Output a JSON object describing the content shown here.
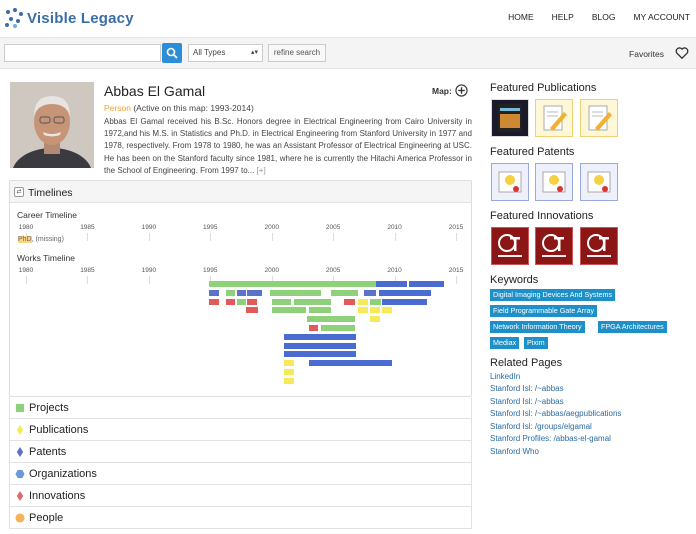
{
  "header": {
    "logo_text": "Visible Legacy",
    "nav": [
      "HOME",
      "HELP",
      "BLOG",
      "MY ACCOUNT"
    ]
  },
  "search": {
    "value": "",
    "type_selected": "All Types",
    "refine_label": "refine search",
    "favorites_label": "Favorites"
  },
  "person": {
    "name": "Abbas El Gamal",
    "type": "Person",
    "active": "(Active on this map: 1993-2014)",
    "map_label": "Map:",
    "bio": "Abbas El Gamal received his B.Sc. Honors degree in Electrical Engineering from Cairo University in 1972,and his M.S. in Statistics and Ph.D. in Electrical Engineering from Stanford University in 1977 and 1978, respectively. From 1978 to 1980, he was an Assistant Professor of Electrical Engineering at USC. He has been on the Stanford faculty since 1981, where he is currently the Hitachi America Professor in the School of Engineering. From 1997 to...",
    "bio_more": "[+]"
  },
  "timelines": {
    "title": "Timelines",
    "career_label": "Career Timeline",
    "works_label": "Works Timeline",
    "years": [
      "1980",
      "1985",
      "1990",
      "1995",
      "2000",
      "2005",
      "2010",
      "2015"
    ],
    "career_entry": "PhD, (missing)",
    "year_range": [
      1980,
      2015
    ],
    "works": [
      {
        "cat": "project",
        "start": 1994.9,
        "end": 2008.5,
        "row": 0
      },
      {
        "cat": "organization",
        "start": 2008.5,
        "end": 2011.0,
        "row": 0
      },
      {
        "cat": "organization",
        "start": 2011.2,
        "end": 2014.0,
        "row": 0
      },
      {
        "cat": "patent",
        "start": 1994.9,
        "end": 1995.7,
        "row": 1
      },
      {
        "cat": "project",
        "start": 1996.3,
        "end": 1997.0,
        "row": 1
      },
      {
        "cat": "patent",
        "start": 1997.2,
        "end": 1997.9,
        "row": 1
      },
      {
        "cat": "patent",
        "start": 1998.0,
        "end": 1999.2,
        "row": 1
      },
      {
        "cat": "project",
        "start": 1999.9,
        "end": 2004.0,
        "row": 1
      },
      {
        "cat": "project",
        "start": 2004.8,
        "end": 2007.0,
        "row": 1
      },
      {
        "cat": "patent",
        "start": 2007.5,
        "end": 2008.5,
        "row": 1
      },
      {
        "cat": "organization",
        "start": 2008.7,
        "end": 2013.0,
        "row": 1
      },
      {
        "cat": "innovation",
        "start": 1994.9,
        "end": 1995.7,
        "row": 2
      },
      {
        "cat": "innovation",
        "start": 1996.3,
        "end": 1997.0,
        "row": 2
      },
      {
        "cat": "project",
        "start": 1997.2,
        "end": 1997.9,
        "row": 2
      },
      {
        "cat": "innovation",
        "start": 1998.0,
        "end": 1998.8,
        "row": 2
      },
      {
        "cat": "project",
        "start": 2000.0,
        "end": 2001.6,
        "row": 2
      },
      {
        "cat": "project",
        "start": 2001.8,
        "end": 2004.8,
        "row": 2
      },
      {
        "cat": "innovation",
        "start": 2005.9,
        "end": 2006.8,
        "row": 2
      },
      {
        "cat": "publication",
        "start": 2007.0,
        "end": 2007.8,
        "row": 2
      },
      {
        "cat": "project",
        "start": 2008.0,
        "end": 2008.9,
        "row": 2
      },
      {
        "cat": "organization",
        "start": 2009.0,
        "end": 2012.6,
        "row": 2
      },
      {
        "cat": "innovation",
        "start": 1997.9,
        "end": 1998.9,
        "row": 3
      },
      {
        "cat": "project",
        "start": 2000.0,
        "end": 2002.8,
        "row": 3
      },
      {
        "cat": "project",
        "start": 2003.0,
        "end": 2004.8,
        "row": 3
      },
      {
        "cat": "publication",
        "start": 2007.0,
        "end": 2007.8,
        "row": 3
      },
      {
        "cat": "publication",
        "start": 2008.0,
        "end": 2008.8,
        "row": 3
      },
      {
        "cat": "publication",
        "start": 2009.0,
        "end": 2009.8,
        "row": 3
      },
      {
        "cat": "project",
        "start": 2002.9,
        "end": 2006.8,
        "row": 4
      },
      {
        "cat": "publication",
        "start": 2008.0,
        "end": 2008.8,
        "row": 4
      },
      {
        "cat": "innovation",
        "start": 2003.0,
        "end": 2003.8,
        "row": 5
      },
      {
        "cat": "project",
        "start": 2004.0,
        "end": 2006.8,
        "row": 5
      },
      {
        "cat": "organization",
        "start": 2001.0,
        "end": 2006.9,
        "row": 6
      },
      {
        "cat": "organization",
        "start": 2001.0,
        "end": 2006.9,
        "row": 7
      },
      {
        "cat": "organization",
        "start": 2001.0,
        "end": 2006.9,
        "row": 8
      },
      {
        "cat": "publication",
        "start": 2001.0,
        "end": 2001.8,
        "row": 9
      },
      {
        "cat": "organization",
        "start": 2003.0,
        "end": 2009.8,
        "row": 9
      },
      {
        "cat": "publication",
        "start": 2001.0,
        "end": 2001.8,
        "row": 10
      },
      {
        "cat": "publication",
        "start": 2001.0,
        "end": 2001.8,
        "row": 11
      }
    ],
    "colors": {
      "project": "#8ed17a",
      "publication": "#f7ea5a",
      "patent": "#5a72c8",
      "organization": "#4a6bd0",
      "innovation": "#e05a5a"
    }
  },
  "categories": [
    {
      "label": "Projects",
      "color": "#8ed17a",
      "shape": "square"
    },
    {
      "label": "Publications",
      "color": "#f7ea5a",
      "shape": "diamond"
    },
    {
      "label": "Patents",
      "color": "#5a72c8",
      "shape": "diamond"
    },
    {
      "label": "Organizations",
      "color": "#6b9bd6",
      "shape": "hexagon"
    },
    {
      "label": "Innovations",
      "color": "#e06a6a",
      "shape": "diamond"
    },
    {
      "label": "People",
      "color": "#f6b25a",
      "shape": "circle"
    }
  ],
  "featured": {
    "publications_title": "Featured Publications",
    "patents_title": "Featured Patents",
    "innovations_title": "Featured Innovations"
  },
  "keywords_title": "Keywords",
  "keywords": [
    "Digital Imaging Devices And Systems",
    "Field Programmable Gate Array",
    "Network Information Theory",
    "FPGA Architectures",
    "Mediax",
    "Pixim"
  ],
  "related_title": "Related Pages",
  "related": [
    "LinkedIn",
    "Stanford Isl: /~abbas",
    "Stanford Isl: /~abbas",
    "Stanford Isl: /~abbas/aegpublications",
    "Stanford Isl: /groups/elgamal",
    "Stanford Profiles: /abbas-el-gamal",
    "Stanford Who"
  ]
}
